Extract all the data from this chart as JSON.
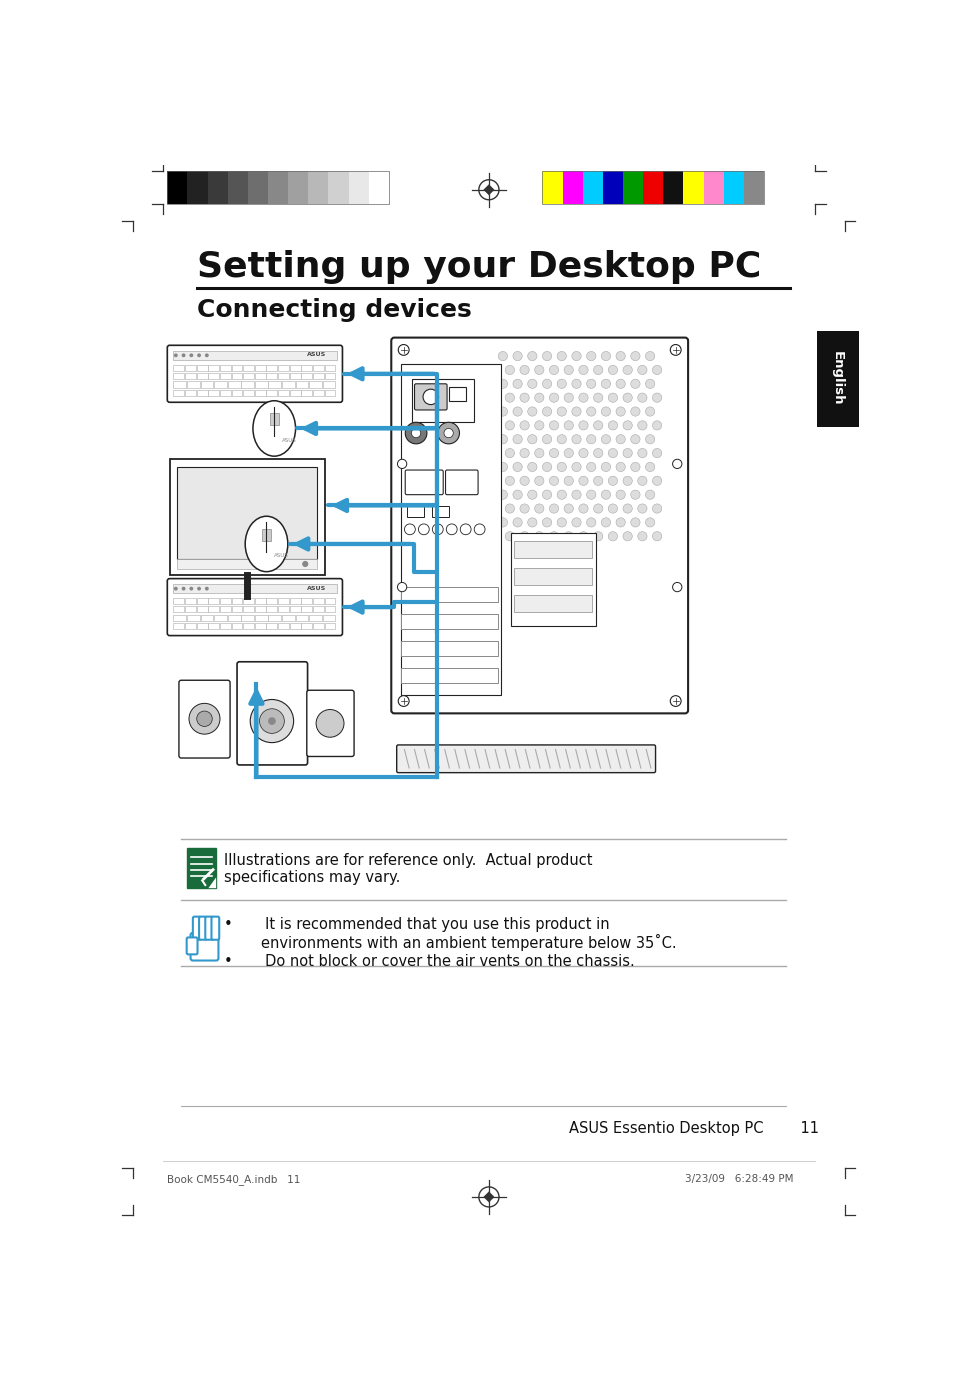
{
  "title": "Setting up your Desktop PC",
  "subtitle": "Connecting devices",
  "bg_color": "#ffffff",
  "title_color": "#111111",
  "subtitle_color": "#111111",
  "arrow_color": "#3399cc",
  "note1_text": "Illustrations are for reference only.  Actual product\nspecifications may vary.",
  "note2_line1": "•       It is recommended that you use this product in\n        environments with an ambient temperature below 35˚C.",
  "note2_line2": "•       Do not block or cover the air vents on the chassis.",
  "footer_left": "Book CM5540_A.indb   11",
  "footer_right": "3/23/09   6:28:49 PM",
  "page_footer_text": "ASUS Essentio Desktop PC",
  "page_number": "11",
  "side_tab": "English",
  "grayscale_colors": [
    "#000000",
    "#222222",
    "#3a3a3a",
    "#555555",
    "#6e6e6e",
    "#888888",
    "#a0a0a0",
    "#b8b8b8",
    "#d0d0d0",
    "#e8e8e8",
    "#ffffff"
  ],
  "color_bars": [
    "#ffff00",
    "#ff00ff",
    "#00ccff",
    "#0000bb",
    "#009900",
    "#ee0000",
    "#111111",
    "#ffff00",
    "#ff88cc",
    "#00ccff",
    "#888888"
  ]
}
